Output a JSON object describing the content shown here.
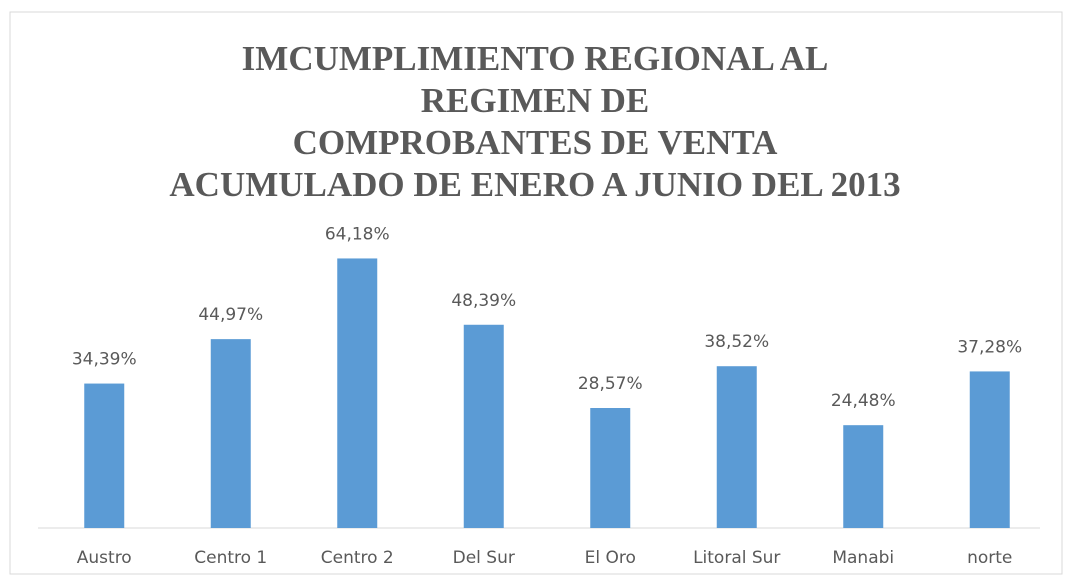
{
  "chart_data": {
    "type": "bar",
    "title": [
      "IMCUMPLIMIENTO REGIONAL AL",
      "REGIMEN DE",
      "COMPROBANTES DE VENTA",
      "ACUMULADO DE ENERO A JUNIO DEL 2013"
    ],
    "categories": [
      "Austro",
      "Centro 1",
      "Centro 2",
      "Del Sur",
      "El Oro",
      "Litoral Sur",
      "Manabi",
      "norte"
    ],
    "values": [
      34.39,
      44.97,
      64.18,
      48.39,
      28.57,
      38.52,
      24.48,
      37.28
    ],
    "value_labels": [
      "34,39%",
      "44,97%",
      "64,18%",
      "48,39%",
      "28,57%",
      "38,52%",
      "24,48%",
      "37,28%"
    ],
    "color": "#5b9bd5",
    "ylim": [
      0,
      70
    ]
  }
}
